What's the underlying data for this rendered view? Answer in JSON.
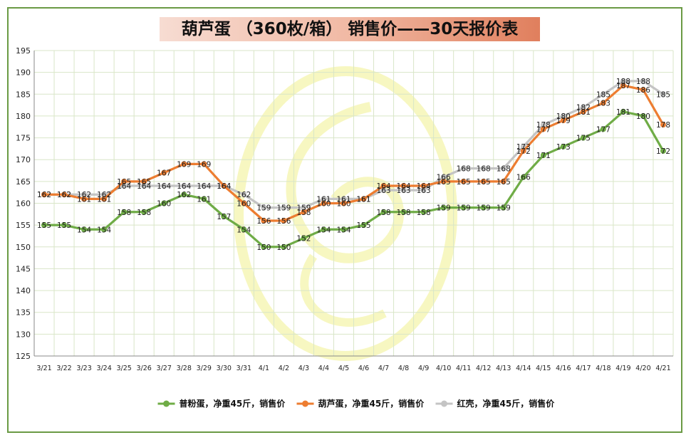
{
  "title": "葫芦蛋 （360枚/箱） 销售价——30天报价表",
  "colors": {
    "series1": "#6fac46",
    "series2": "#ed7d31",
    "series3": "#c4c4c4",
    "watermark": "#f3f3a6",
    "grid": "#d9e6c8",
    "frame": "#6a9a44"
  },
  "chart_data": {
    "type": "line",
    "title": "葫芦蛋 （360枚/箱） 销售价——30天报价表",
    "xlabel": "",
    "ylabel": "",
    "ylim": [
      125,
      195
    ],
    "ytick_step": 5,
    "grid": true,
    "legend_position": "bottom",
    "x": [
      "3/21",
      "3/22",
      "3/23",
      "3/24",
      "3/25",
      "3/26",
      "3/27",
      "3/28",
      "3/29",
      "3/30",
      "3/31",
      "4/1",
      "4/2",
      "4/3",
      "4/4",
      "4/5",
      "4/6",
      "4/7",
      "4/8",
      "4/9",
      "4/10",
      "4/11",
      "4/12",
      "4/13",
      "4/14",
      "4/15",
      "4/16",
      "4/17",
      "4/18",
      "4/19",
      "4/20",
      "4/21"
    ],
    "series": [
      {
        "name": "普粉蛋，净重45斤，销售价",
        "color_key": "series1",
        "values": [
          155,
          155,
          154,
          154,
          158,
          158,
          160,
          162,
          161,
          157,
          154,
          150,
          150,
          152,
          154,
          154,
          155,
          158,
          158,
          158,
          159,
          159,
          159,
          159,
          166,
          171,
          173,
          175,
          177,
          181,
          180,
          172
        ]
      },
      {
        "name": "葫芦蛋，净重45斤，销售价",
        "color_key": "series2",
        "values": [
          162,
          162,
          161,
          161,
          165,
          165,
          167,
          169,
          169,
          164,
          160,
          156,
          156,
          158,
          160,
          160,
          161,
          164,
          164,
          164,
          165,
          165,
          165,
          165,
          172,
          177,
          179,
          181,
          183,
          187,
          186,
          178
        ]
      },
      {
        "name": "红壳，净重45斤，销售价",
        "color_key": "series3",
        "values": [
          162,
          162,
          162,
          162,
          164,
          164,
          164,
          164,
          164,
          164,
          162,
          159,
          159,
          159,
          161,
          161,
          161,
          163,
          163,
          163,
          166,
          168,
          168,
          168,
          173,
          178,
          180,
          182,
          185,
          188,
          188,
          185
        ]
      }
    ]
  }
}
